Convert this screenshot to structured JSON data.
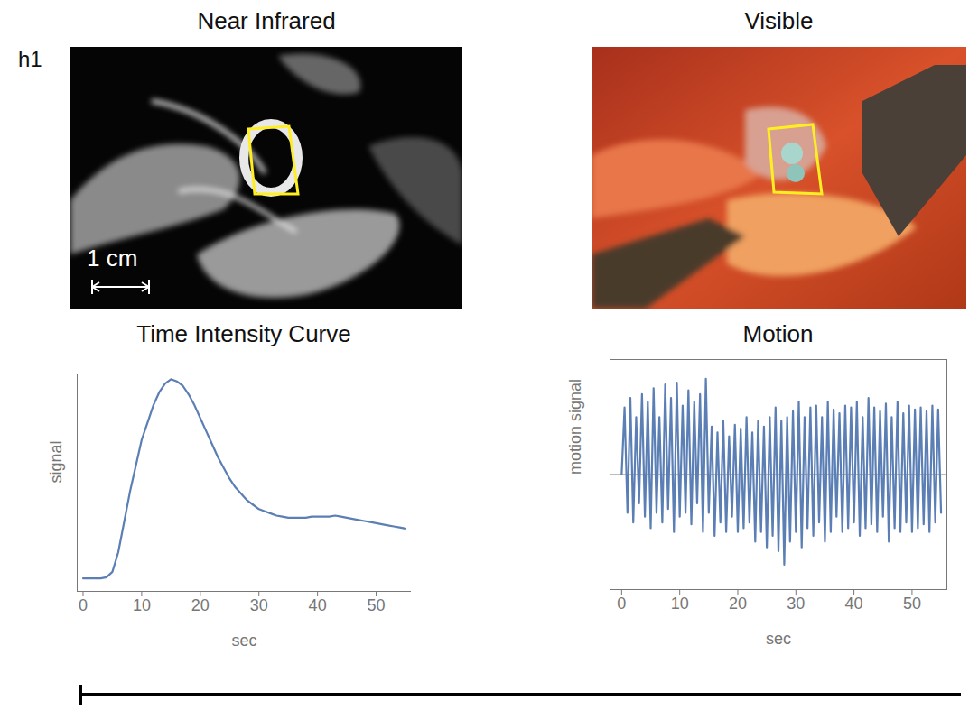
{
  "panel_label": "h1",
  "images": [
    {
      "title": "Near Infrared",
      "scale_bar": "1 cm"
    },
    {
      "title": "Visible"
    }
  ],
  "chart_data": [
    {
      "type": "line",
      "title": "Time Intensity Curve",
      "x_label": "sec",
      "y_label": "signal",
      "x": [
        0,
        1,
        2,
        3,
        4,
        5,
        6,
        7,
        8,
        9,
        10,
        11,
        12,
        13,
        14,
        15,
        16,
        17,
        18,
        19,
        20,
        21,
        22,
        23,
        24,
        25,
        26,
        27,
        28,
        29,
        30,
        31,
        32,
        33,
        34,
        35,
        36,
        37,
        38,
        39,
        40,
        41,
        42,
        43,
        44,
        45,
        46,
        47,
        48,
        49,
        50,
        51,
        52,
        53,
        54,
        55
      ],
      "values": [
        6,
        6,
        6,
        6,
        6.5,
        9,
        18,
        32,
        46,
        58,
        70,
        78,
        86,
        92,
        96,
        98,
        97,
        95,
        91,
        86,
        80,
        74,
        68,
        62,
        57,
        52,
        48,
        45,
        42,
        40,
        38,
        37,
        36,
        35,
        34.5,
        34,
        34,
        34,
        34,
        34.5,
        34.5,
        34.5,
        34.5,
        35,
        34.5,
        34,
        33.5,
        33,
        32.5,
        32,
        31.5,
        31,
        30.5,
        30,
        29.5,
        29
      ],
      "color": "#5b7fb5",
      "xlim": [
        -1,
        56
      ],
      "xticks": [
        0,
        10,
        20,
        30,
        40,
        50
      ],
      "ylim": [
        0,
        100
      ],
      "tick_labels": "x",
      "grid": false
    },
    {
      "type": "line",
      "title": "Motion",
      "x_label": "sec",
      "y_label": "motion signal",
      "x": [
        0,
        0.5,
        1,
        1.5,
        2,
        2.5,
        3,
        3.5,
        4,
        4.5,
        5,
        5.5,
        6,
        6.5,
        7,
        7.5,
        8,
        8.5,
        9,
        9.5,
        10,
        10.5,
        11,
        11.5,
        12,
        12.5,
        13,
        13.5,
        14,
        14.5,
        15,
        15.5,
        16,
        16.5,
        17,
        17.5,
        18,
        18.5,
        19,
        19.5,
        20,
        20.5,
        21,
        21.5,
        22,
        22.5,
        23,
        23.5,
        24,
        24.5,
        25,
        25.5,
        26,
        26.5,
        27,
        27.5,
        28,
        28.5,
        29,
        29.5,
        30,
        30.5,
        31,
        31.5,
        32,
        32.5,
        33,
        33.5,
        34,
        34.5,
        35,
        35.5,
        36,
        36.5,
        37,
        37.5,
        38,
        38.5,
        39,
        39.5,
        40,
        40.5,
        41,
        41.5,
        42,
        42.5,
        43,
        43.5,
        44,
        44.5,
        45,
        45.5,
        46,
        46.5,
        47,
        47.5,
        48,
        48.5,
        49,
        49.5,
        50,
        50.5,
        51,
        51.5,
        52,
        52.5,
        53,
        53.5,
        54,
        54.5,
        55
      ],
      "values": [
        0,
        0.35,
        -0.2,
        0.4,
        -0.25,
        0.3,
        -0.15,
        0.42,
        -0.22,
        0.38,
        -0.28,
        0.45,
        -0.2,
        0.3,
        -0.25,
        0.47,
        -0.18,
        0.4,
        -0.3,
        0.48,
        -0.22,
        0.36,
        -0.2,
        0.44,
        -0.26,
        0.38,
        -0.15,
        0.42,
        -0.3,
        0.5,
        -0.2,
        0.25,
        -0.32,
        0.22,
        -0.25,
        0.28,
        -0.3,
        0.2,
        -0.22,
        0.26,
        -0.3,
        0.24,
        -0.28,
        0.3,
        -0.25,
        0.22,
        -0.35,
        0.28,
        -0.3,
        0.25,
        -0.38,
        0.3,
        -0.32,
        0.35,
        -0.4,
        0.28,
        -0.47,
        0.3,
        -0.35,
        0.33,
        -0.3,
        0.38,
        -0.38,
        0.3,
        -0.28,
        0.35,
        -0.32,
        0.36,
        -0.25,
        0.3,
        -0.35,
        0.38,
        -0.3,
        0.34,
        -0.22,
        0.32,
        -0.3,
        0.36,
        -0.28,
        0.35,
        -0.25,
        0.38,
        -0.32,
        0.3,
        -0.28,
        0.4,
        -0.26,
        0.35,
        -0.3,
        0.33,
        -0.22,
        0.37,
        -0.35,
        0.3,
        -0.28,
        0.38,
        -0.3,
        0.32,
        -0.25,
        0.36,
        -0.3,
        0.34,
        -0.28,
        0.35,
        -0.26,
        0.33,
        -0.3,
        0.36,
        -0.25,
        0.34,
        -0.2
      ],
      "color": "#5b7fb5",
      "xlim": [
        -2,
        56
      ],
      "xticks": [
        0,
        10,
        20,
        30,
        40,
        50
      ],
      "ylim": [
        -0.6,
        0.6
      ],
      "reference_line": 0,
      "tick_labels": "x",
      "grid": false
    }
  ]
}
